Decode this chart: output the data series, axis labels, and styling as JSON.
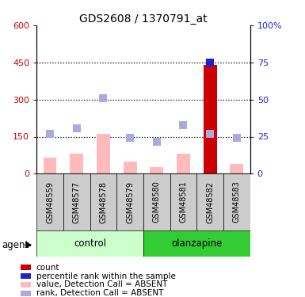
{
  "title": "GDS2608 / 1370791_at",
  "samples": [
    "GSM48559",
    "GSM48577",
    "GSM48578",
    "GSM48579",
    "GSM48580",
    "GSM48581",
    "GSM48582",
    "GSM48583"
  ],
  "value_absent": [
    65,
    80,
    160,
    50,
    28,
    80,
    440,
    40
  ],
  "rank_absent": [
    160,
    185,
    305,
    145,
    130,
    195,
    160,
    145
  ],
  "count_val": [
    0,
    0,
    0,
    0,
    0,
    0,
    440,
    0
  ],
  "percentile_val": [
    0,
    0,
    0,
    0,
    0,
    0,
    75,
    0
  ],
  "ylim_left": [
    0,
    600
  ],
  "ylim_right": [
    0,
    100
  ],
  "yticks_left": [
    0,
    150,
    300,
    450,
    600
  ],
  "yticks_right": [
    0,
    25,
    50,
    75,
    100
  ],
  "ytick_labels_left": [
    "0",
    "150",
    "300",
    "450",
    "600"
  ],
  "ytick_labels_right": [
    "0",
    "25",
    "50",
    "75",
    "100%"
  ],
  "color_count": "#cc0000",
  "color_percentile": "#2222cc",
  "color_value_absent": "#ffbbbb",
  "color_rank_absent": "#aaaadd",
  "color_control_bg_light": "#ccffcc",
  "color_olanzapine_bg": "#33cc33",
  "color_sample_bg": "#cccccc",
  "bar_width": 0.5,
  "dot_size": 45,
  "agent_label": "agent",
  "hline_color": "black",
  "hline_style": "dotted",
  "hline_lw": 0.9
}
